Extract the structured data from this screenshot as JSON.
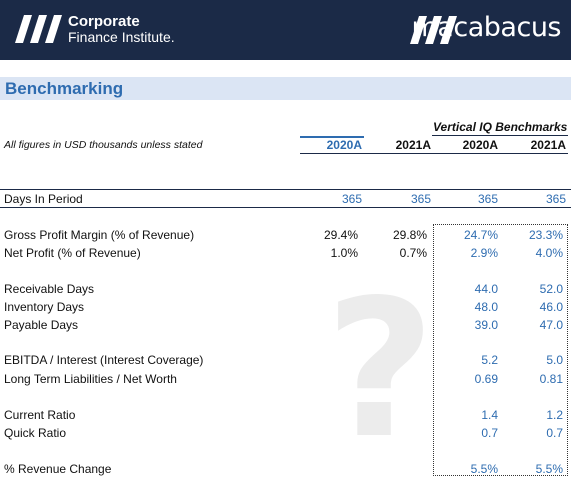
{
  "banner": {
    "cfi_line1": "Corporate",
    "cfi_line2": "Finance Institute.",
    "mb_name": "macabacus",
    "bg_color": "#1b2a47"
  },
  "title": "Benchmarking",
  "note": "All figures in USD thousands unless stated",
  "benchmark_group": "Vertical IQ Benchmarks",
  "columns": [
    "2020A",
    "2021A",
    "2020A",
    "2021A"
  ],
  "rows": [
    {
      "label": "Days In Period",
      "values": [
        "365",
        "365",
        "365",
        "365"
      ]
    },
    {
      "label": "Gross Profit Margin (% of Revenue)",
      "values": [
        "29.4%",
        "29.8%",
        "24.7%",
        "23.3%"
      ]
    },
    {
      "label": "Net Profit (% of Revenue)",
      "values": [
        "1.0%",
        "0.7%",
        "2.9%",
        "4.0%"
      ]
    },
    {
      "label": "Receivable Days",
      "values": [
        "",
        "",
        "44.0",
        "52.0"
      ]
    },
    {
      "label": "Inventory Days",
      "values": [
        "",
        "",
        "48.0",
        "46.0"
      ]
    },
    {
      "label": "Payable Days",
      "values": [
        "",
        "",
        "39.0",
        "47.0"
      ]
    },
    {
      "label": "EBITDA / Interest (Interest Coverage)",
      "values": [
        "",
        "",
        "5.2",
        "5.0"
      ]
    },
    {
      "label": "Long Term Liabilities / Net Worth",
      "values": [
        "",
        "",
        "0.69",
        "0.81"
      ]
    },
    {
      "label": "Current Ratio",
      "values": [
        "",
        "",
        "1.4",
        "1.2"
      ]
    },
    {
      "label": "Quick Ratio",
      "values": [
        "",
        "",
        "0.7",
        "0.7"
      ]
    },
    {
      "label": "% Revenue Change",
      "values": [
        "",
        "",
        "5.5%",
        "5.5%"
      ]
    }
  ],
  "colors": {
    "accent": "#2e6cb0",
    "title_band": "#dbe5f4"
  }
}
